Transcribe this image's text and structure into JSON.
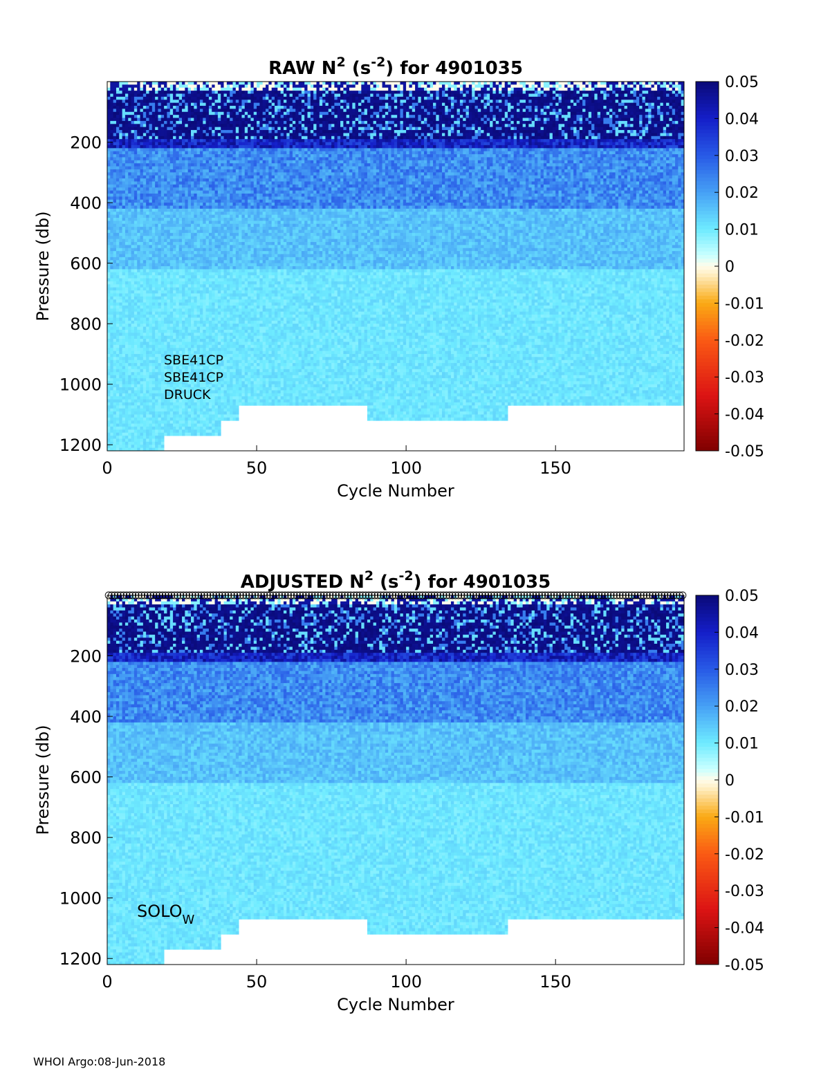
{
  "footer": "WHOI Argo:08-Jun-2018",
  "chart_data": [
    {
      "type": "heatmap",
      "title": "RAW N2 (s-2) for 4901035",
      "title_parts": [
        "RAW N",
        "2",
        " (s",
        "-2",
        ") for 4901035"
      ],
      "xlabel": "Cycle Number",
      "ylabel": "Pressure (db)",
      "xlim": [
        0,
        193
      ],
      "ylim": [
        1220,
        0
      ],
      "y_reversed": true,
      "xticks": [
        0,
        50,
        100,
        150
      ],
      "yticks": [
        200,
        400,
        600,
        800,
        1000,
        1200
      ],
      "colorbar": {
        "range": [
          -0.05,
          0.05
        ],
        "ticks": [
          "0.05",
          "0.04",
          "0.03",
          "0.02",
          "0.01",
          "0",
          "-0.01",
          "-0.02",
          "-0.03",
          "-0.04",
          "-0.05"
        ],
        "colormap": "white-centered diverging: dark red - red - orange - cream - cyan - blue - navy"
      },
      "field_description": {
        "surface_0_200db": 0.04,
        "layer_200_400db": 0.025,
        "layer_400_600db": 0.015,
        "deep_600_1100db": 0.01,
        "max_depth_db_by_cycle_segments": [
          {
            "cycles": [
              0,
              20
            ],
            "max_pressure": 1220
          },
          {
            "cycles": [
              20,
              39
            ],
            "max_pressure": 1170
          },
          {
            "cycles": [
              39,
              45
            ],
            "max_pressure": 1120
          },
          {
            "cycles": [
              45,
              88
            ],
            "max_pressure": 1070
          },
          {
            "cycles": [
              88,
              135
            ],
            "max_pressure": 1120
          },
          {
            "cycles": [
              135,
              193
            ],
            "max_pressure": 1070
          }
        ]
      },
      "annotation": [
        "SBE41CP",
        "SBE41CP",
        "DRUCK"
      ]
    },
    {
      "type": "heatmap",
      "title": "ADJUSTED N2 (s-2) for 4901035",
      "title_parts": [
        "ADJUSTED N",
        "2",
        " (s",
        "-2",
        ") for 4901035"
      ],
      "xlabel": "Cycle Number",
      "ylabel": "Pressure (db)",
      "xlim": [
        0,
        193
      ],
      "ylim": [
        1220,
        0
      ],
      "y_reversed": true,
      "xticks": [
        0,
        50,
        100,
        150
      ],
      "yticks": [
        200,
        400,
        600,
        800,
        1000,
        1200
      ],
      "colorbar": {
        "range": [
          -0.05,
          0.05
        ],
        "ticks": [
          "0.05",
          "0.04",
          "0.03",
          "0.02",
          "0.01",
          "0",
          "-0.01",
          "-0.02",
          "-0.03",
          "-0.04",
          "-0.05"
        ],
        "colormap": "white-centered diverging: dark red - red - orange - cream - cyan - blue - navy"
      },
      "qc_markers": {
        "shape": "open circle",
        "pressure": 0,
        "cycles": "1-193"
      },
      "annotation": [
        "SOLO",
        "W"
      ]
    }
  ]
}
